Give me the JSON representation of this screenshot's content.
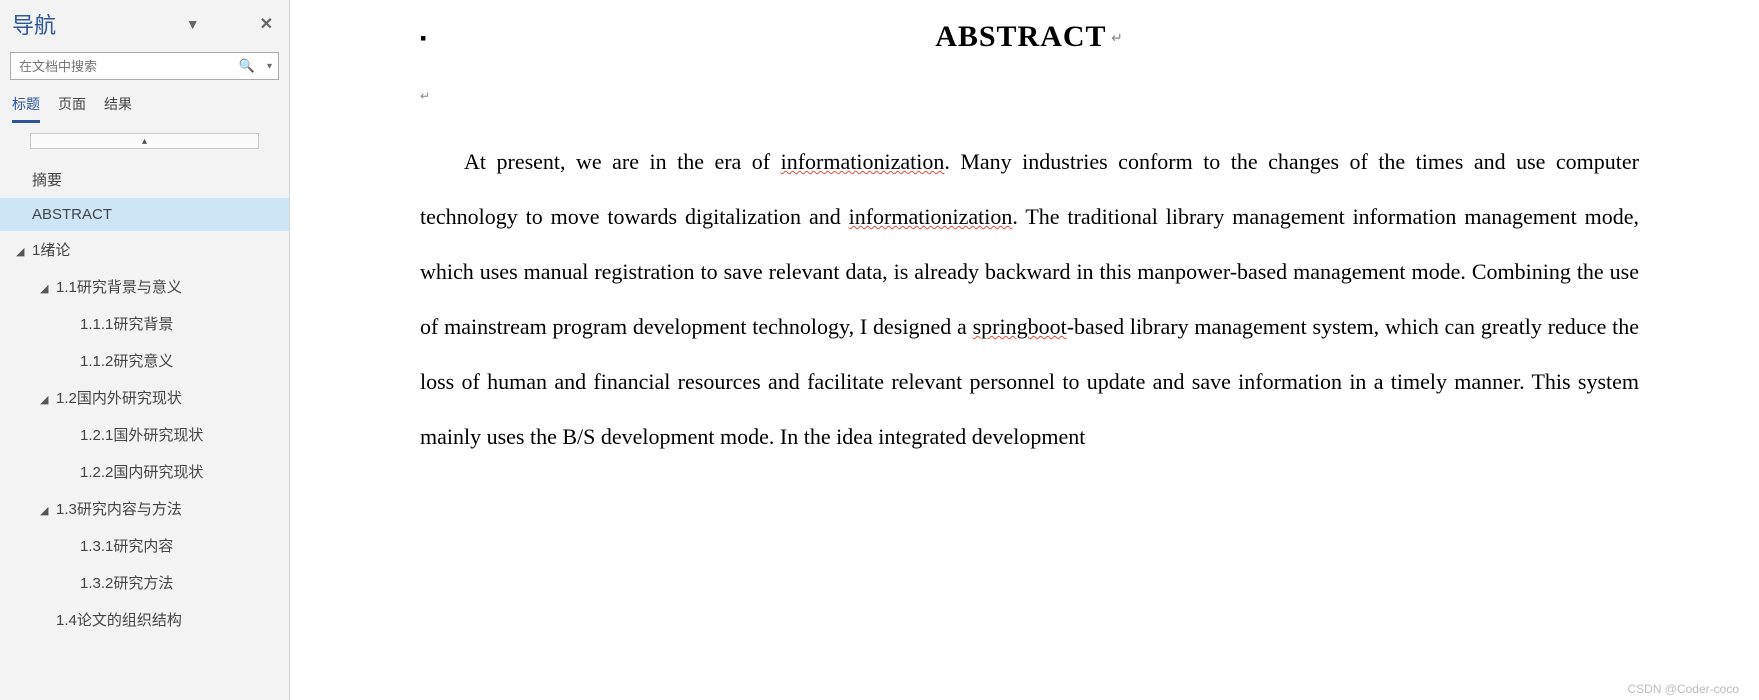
{
  "nav": {
    "title": "导航",
    "search_placeholder": "在文档中搜索",
    "tabs": {
      "t0": "标题",
      "t1": "页面",
      "t2": "结果"
    },
    "collapse_glyph": "▴",
    "outline": {
      "i0": "摘要",
      "i1": "ABSTRACT",
      "i2": "1绪论",
      "i3": "1.1研究背景与意义",
      "i4": "1.1.1研究背景",
      "i5": "1.1.2研究意义",
      "i6": "1.2国内外研究现状",
      "i7": "1.2.1国外研究现状",
      "i8": "1.2.2国内研究现状",
      "i9": "1.3研究内容与方法",
      "i10": "1.3.1研究内容",
      "i11": "1.3.2研究方法",
      "i12": "1.4论文的组织结构"
    }
  },
  "doc": {
    "title": "ABSTRACT",
    "p": {
      "s0": "At present, we are in the era of ",
      "w0": "informationization",
      "s1": ". Many industries conform to the changes of the times and use computer technology to move towards digitalization and ",
      "w1": "informationization",
      "s2": ". The traditional library management information management mode, which uses manual registration to save relevant data, is already backward in this manpower-based management mode. Combining the use of mainstream program development technology, I designed a ",
      "w2": "springboot",
      "s3": "-based library management system, which can greatly reduce the loss of human and financial resources and facilitate relevant personnel to update and save information in a timely manner. This system mainly uses the B/S development mode. In the idea integrated development"
    }
  },
  "watermark": "CSDN @Coder-coco"
}
